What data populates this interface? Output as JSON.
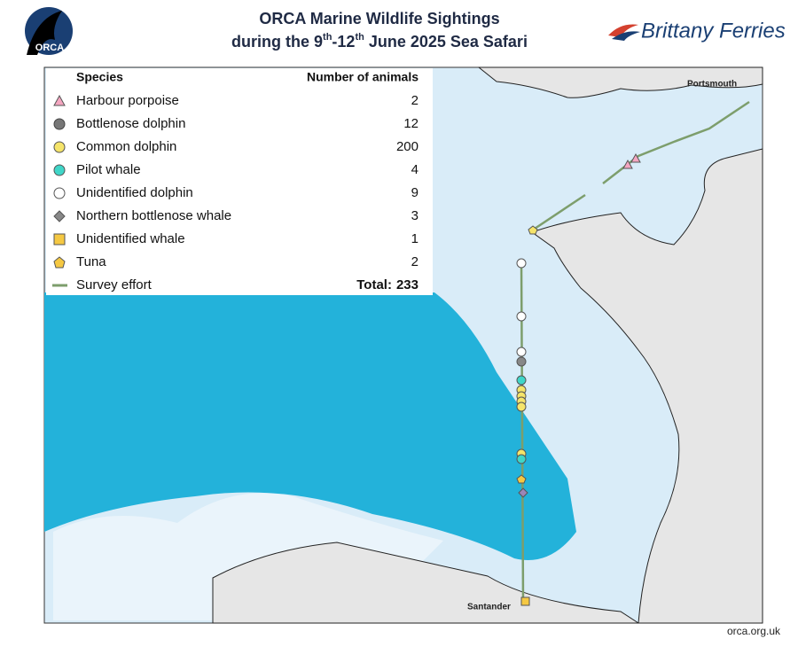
{
  "header": {
    "logo_text": "ORCA",
    "title_line1": "ORCA Marine Wildlife Sightings",
    "title_line2": {
      "before": "during the 9",
      "sup1": "th",
      "middle": "-12",
      "sup2": "th",
      "after": " June 2025 Sea Safari"
    },
    "partner": "Brittany Ferries"
  },
  "legend": {
    "species_header": "Species",
    "count_header": "Number of animals",
    "rows": [
      {
        "species": "Harbour porpoise",
        "count": 2
      },
      {
        "species": "Bottlenose dolphin",
        "count": 12
      },
      {
        "species": "Common dolphin",
        "count": 200
      },
      {
        "species": "Pilot whale",
        "count": 4
      },
      {
        "species": "Unidentified dolphin",
        "count": 9
      },
      {
        "species": "Northern bottlenose whale",
        "count": 3
      },
      {
        "species": "Unidentified whale",
        "count": 1
      },
      {
        "species": "Tuna",
        "count": 2
      }
    ],
    "effort_label": "Survey effort",
    "total_label": "Total:",
    "total_value": 233
  },
  "places": {
    "north": "Portsmouth",
    "south": "Santander"
  },
  "footer": "orca.org.uk"
}
